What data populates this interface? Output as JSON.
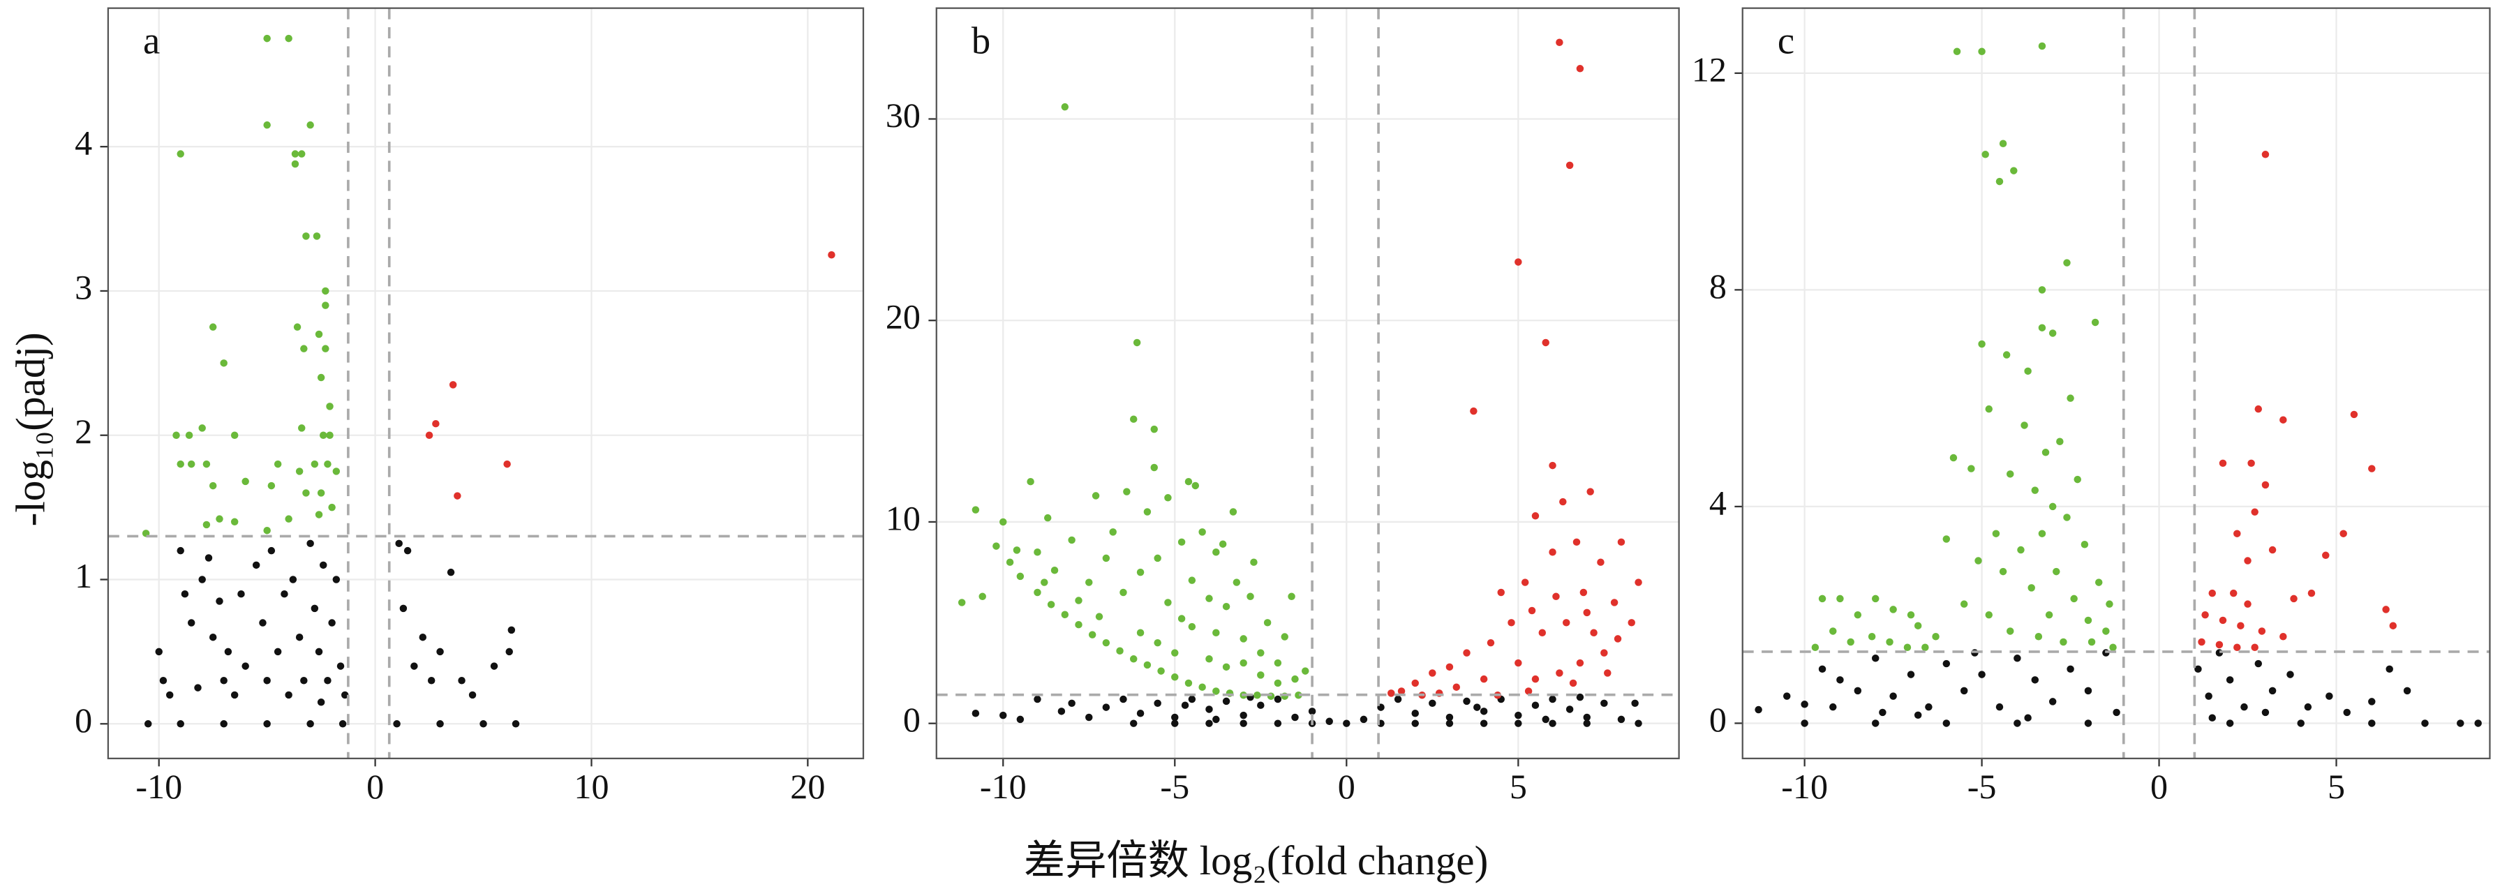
{
  "x_label": "差异倍数 log₂(fold change)",
  "y_label": "-log₁₀(padj)",
  "chart_data": [
    {
      "type": "scatter",
      "panel_label": "a",
      "xlim": [
        -12.35,
        22.57
      ],
      "ylim": [
        -0.24,
        4.96
      ],
      "xticks": [
        -10,
        0,
        10,
        20
      ],
      "yticks": [
        0,
        1,
        2,
        3,
        4
      ],
      "grid": true,
      "vlines": [
        -1.25,
        0.65
      ],
      "hline": 1.3,
      "series": [
        {
          "color": "#111111",
          "x": [
            -10.5,
            -9,
            -7,
            -5,
            -3,
            -1.5,
            1,
            3,
            5,
            6.5,
            -10,
            -9.8,
            -9.5,
            -9,
            -8.8,
            -8.5,
            -8,
            -7.5,
            -7.2,
            -7,
            -6.8,
            -6.5,
            -6.2,
            -6,
            -5.5,
            -5.2,
            -5,
            -4.8,
            -4.5,
            -4.2,
            -4,
            -3.8,
            -3.5,
            -3.3,
            -3,
            -2.8,
            -2.6,
            -2.4,
            -2.2,
            -2.0,
            -1.8,
            -1.6,
            -1.4,
            1.1,
            1.3,
            1.5,
            1.8,
            2.2,
            2.6,
            3,
            3.5,
            4,
            4.5,
            5.5,
            6.2,
            6.3,
            -8.2,
            -7.7,
            -2.5
          ],
          "y": [
            0,
            0,
            0,
            0,
            0,
            0,
            0,
            0,
            0,
            0,
            0.5,
            0.3,
            0.2,
            1.2,
            0.9,
            0.7,
            1.0,
            0.6,
            0.85,
            0.3,
            0.5,
            0.2,
            0.9,
            0.4,
            1.1,
            0.7,
            0.3,
            1.2,
            0.5,
            0.9,
            0.2,
            1.0,
            0.6,
            0.3,
            1.25,
            0.8,
            0.5,
            1.1,
            0.3,
            0.7,
            1.0,
            0.4,
            0.2,
            1.25,
            0.8,
            1.2,
            0.4,
            0.6,
            0.3,
            0.5,
            1.05,
            0.3,
            0.2,
            0.4,
            0.5,
            0.65,
            0.25,
            1.15,
            0.15
          ]
        },
        {
          "color": "#6ab93a",
          "x": [
            -9,
            -5,
            -4,
            -5,
            -3,
            -3.7,
            -3.4,
            -3.7,
            -3.2,
            -2.7,
            -2.3,
            -2.3,
            -7.5,
            -7,
            -3.6,
            -3.3,
            -2.6,
            -2.3,
            -2.5,
            -2.1,
            -8,
            -8.6,
            -9.2,
            -6.5,
            -3.4,
            -2.4,
            -2.1,
            -8.5,
            -7.8,
            -9,
            -6.0,
            -4.5,
            -3.5,
            -2.8,
            -2.2,
            -1.8,
            -7.5,
            -4.8,
            -3.2,
            -2.5,
            -7.2,
            -7.8,
            -6.5,
            -4.0,
            -2.6,
            -10.6,
            -5.0,
            -2.0
          ],
          "y": [
            3.95,
            4.75,
            4.75,
            4.15,
            4.15,
            3.95,
            3.95,
            3.88,
            3.38,
            3.38,
            3.0,
            2.9,
            2.75,
            2.5,
            2.75,
            2.6,
            2.7,
            2.6,
            2.4,
            2.2,
            2.05,
            2.0,
            2.0,
            2.0,
            2.05,
            2.0,
            2.0,
            1.8,
            1.8,
            1.8,
            1.68,
            1.8,
            1.75,
            1.8,
            1.8,
            1.75,
            1.65,
            1.65,
            1.6,
            1.6,
            1.42,
            1.38,
            1.4,
            1.42,
            1.45,
            1.32,
            1.34,
            1.5
          ]
        },
        {
          "color": "#e0312b",
          "x": [
            21.1,
            3.6,
            2.8,
            2.5,
            6.1,
            3.8
          ],
          "y": [
            3.25,
            2.35,
            2.08,
            2.0,
            1.8,
            1.58
          ]
        }
      ]
    },
    {
      "type": "scatter",
      "panel_label": "b",
      "xlim": [
        -11.94,
        9.68
      ],
      "ylim": [
        -1.74,
        35.5
      ],
      "xticks": [
        -10,
        -5,
        0,
        5
      ],
      "yticks": [
        0,
        10,
        20,
        30
      ],
      "grid": true,
      "vlines": [
        -1,
        0.93
      ],
      "hline": 1.42,
      "series": [
        {
          "color": "#111111",
          "x": [
            -10.8,
            -10,
            -9.5,
            -9,
            -8,
            -7,
            -6.5,
            -6,
            -5.5,
            -5,
            -4.5,
            -4,
            -3.5,
            -3,
            -2.5,
            -2,
            -1.5,
            -1,
            -0.5,
            0,
            0.5,
            1,
            1.5,
            2,
            2.5,
            3,
            3.5,
            4,
            4.5,
            5,
            5.5,
            6,
            6.5,
            7,
            7.5,
            8,
            8.5,
            -6.2,
            -5,
            -4,
            -3,
            -2,
            -1,
            1,
            2,
            3,
            4,
            5,
            6,
            7,
            -8.3,
            -7.5,
            -4.7,
            -3.8,
            -2.8,
            3.8,
            5.8,
            6.8,
            8.4
          ],
          "y": [
            0.5,
            0.4,
            0.2,
            1.2,
            1.0,
            0.8,
            1.2,
            0.5,
            1.0,
            0.3,
            1.2,
            0.7,
            1.1,
            0.4,
            0.9,
            1.2,
            0.3,
            0.6,
            0.1,
            0,
            0.2,
            0.8,
            1.2,
            0.5,
            1.0,
            0.3,
            1.1,
            0.6,
            1.2,
            0.4,
            0.9,
            1.2,
            0.7,
            0.3,
            1.0,
            0.2,
            0.0,
            0,
            0,
            0,
            0,
            0,
            0,
            0,
            0,
            0,
            0,
            0,
            0,
            0,
            0.6,
            0.3,
            0.9,
            0.2,
            1.3,
            0.8,
            0.2,
            1.3,
            1.0
          ]
        },
        {
          "color": "#6ab93a",
          "x": [
            -8.2,
            -6.1,
            -5.2,
            -6.2,
            -5.6,
            -4.6,
            -4.4,
            -3.8,
            -3.6,
            -5.6,
            -10.8,
            -9.2,
            -11.2,
            -10.2,
            -9.8,
            -9.5,
            -9,
            -8.6,
            -8.2,
            -7.8,
            -7.4,
            -7,
            -6.6,
            -6.2,
            -5.8,
            -5.4,
            -5,
            -4.6,
            -4.2,
            -3.8,
            -3.4,
            -3,
            -2.6,
            -2.2,
            -1.8,
            -1.4,
            -9,
            -8.5,
            -8,
            -7.5,
            -7,
            -6.8,
            -6.5,
            -6,
            -5.5,
            -5.2,
            -4.8,
            -4.5,
            -4.2,
            -4,
            -3.8,
            -3.5,
            -3.2,
            -3,
            -2.8,
            -2.5,
            -2.3,
            -2,
            -1.8,
            -1.5,
            -1.2,
            -6,
            -5.5,
            -5,
            -4.5,
            -4,
            -3.5,
            -3,
            -2.5,
            -2,
            -7.8,
            -7.2,
            -8.8,
            -9.6,
            -10,
            -10.6,
            -4.8,
            -5.8,
            -6.4,
            -7.3,
            -8.7,
            -3.3,
            -2.7,
            -1.6
          ],
          "y": [
            30.6,
            18.9,
            11.2,
            15.1,
            14.6,
            12,
            11.8,
            8.5,
            8.9,
            12.7,
            10.6,
            12,
            6.0,
            8.8,
            8.0,
            7.3,
            6.5,
            5.9,
            5.4,
            4.9,
            4.4,
            4.0,
            3.6,
            3.2,
            2.9,
            2.6,
            2.3,
            2.0,
            1.8,
            1.6,
            1.5,
            1.4,
            1.4,
            1.35,
            1.35,
            1.4,
            8.5,
            7.6,
            9.1,
            7.0,
            8.2,
            9.5,
            6.5,
            7.5,
            8.2,
            6.0,
            5.2,
            7.1,
            9.5,
            6.2,
            4.5,
            5.8,
            7.0,
            4.2,
            6.3,
            3.5,
            5.0,
            3.0,
            4.3,
            2.2,
            2.6,
            4.5,
            4.0,
            3.5,
            4.8,
            3.2,
            2.8,
            3.0,
            2.4,
            2.0,
            6.1,
            5.3,
            7.0,
            8.6,
            10,
            6.3,
            9.0,
            10.5,
            11.5,
            11.3,
            10.2,
            10.5,
            8.0,
            6.3
          ]
        },
        {
          "color": "#e0312b",
          "x": [
            6.2,
            6.8,
            6.5,
            5.0,
            5.8,
            3.7,
            6.0,
            7.1,
            6.3,
            5.5,
            8.0,
            8.5,
            6.7,
            7.4,
            6.0,
            5.2,
            4.5,
            7.8,
            7.0,
            6.4,
            5.7,
            4.8,
            4.2,
            3.5,
            3.0,
            2.5,
            2,
            1.6,
            1.3,
            7.5,
            6.8,
            6.2,
            5.5,
            5,
            4,
            3.2,
            2.7,
            7.2,
            7.6,
            6.6,
            5.3,
            4.4,
            8.3,
            7.9,
            6.9,
            6.1,
            5.4,
            2.2
          ],
          "y": [
            33.8,
            32.5,
            27.7,
            22.9,
            18.9,
            15.5,
            12.8,
            11.5,
            11.0,
            10.3,
            9.0,
            7.0,
            9.0,
            8.0,
            8.5,
            7.0,
            6.5,
            6.0,
            5.5,
            5.0,
            4.5,
            5.0,
            4.0,
            3.5,
            2.8,
            2.5,
            2.0,
            1.6,
            1.5,
            3.5,
            3.0,
            2.5,
            2.2,
            3.0,
            2.2,
            1.8,
            1.5,
            4.5,
            2.5,
            2.0,
            1.6,
            1.4,
            5.0,
            4.2,
            6.5,
            6.3,
            5.6,
            1.4
          ]
        }
      ]
    },
    {
      "type": "scatter",
      "panel_label": "c",
      "xlim": [
        -11.75,
        9.33
      ],
      "ylim": [
        -0.65,
        13.2
      ],
      "xticks": [
        -10,
        -5,
        0,
        5
      ],
      "yticks": [
        0,
        4,
        8,
        12
      ],
      "grid": true,
      "vlines": [
        -1,
        1
      ],
      "hline": 1.32,
      "series": [
        {
          "color": "#111111",
          "x": [
            -11.3,
            -10.5,
            -10,
            -9.5,
            -9,
            -8.5,
            -8,
            -7.5,
            -7,
            -6.5,
            -6,
            -5.5,
            -5,
            -4.5,
            -4,
            -3.5,
            -3,
            -2.5,
            -2,
            -1.5,
            -1.2,
            1.1,
            1.4,
            1.7,
            2,
            2.4,
            2.8,
            3.2,
            3.7,
            4.2,
            4.8,
            5.3,
            6,
            6.5,
            7,
            7.5,
            8.5,
            9,
            -10,
            -8,
            -6,
            -4,
            -2,
            2,
            4,
            6,
            -9.2,
            -7.8,
            -6.8,
            -5.2,
            -3.7,
            1.5,
            3
          ],
          "y": [
            0.25,
            0.5,
            0.35,
            1.0,
            0.8,
            0.6,
            1.2,
            0.5,
            0.9,
            0.3,
            1.1,
            0.6,
            0.9,
            0.3,
            1.2,
            0.8,
            0.4,
            1.0,
            0.6,
            1.3,
            0.2,
            1.0,
            0.5,
            1.3,
            0.8,
            0.3,
            1.1,
            0.6,
            0.9,
            0.3,
            0.5,
            0.2,
            0.4,
            1.0,
            0.6,
            0.0,
            0,
            0,
            0,
            0,
            0,
            0,
            0,
            0,
            0,
            0,
            0.3,
            0.2,
            0.15,
            1.3,
            0.1,
            0.1,
            0.2
          ]
        },
        {
          "color": "#6ab93a",
          "x": [
            -5.7,
            -5.0,
            -3.3,
            -4.4,
            -4.9,
            -4.1,
            -4.5,
            -2.6,
            -3.3,
            -3.0,
            -1.8,
            -3.3,
            -5.0,
            -4.3,
            -3.7,
            -2.5,
            -3.8,
            -4.8,
            -3.2,
            -2.8,
            -5.3,
            -4.2,
            -3.5,
            -2.3,
            -3.0,
            -2.6,
            -4.6,
            -3.9,
            -3.3,
            -2.1,
            -5.1,
            -4.4,
            -2.9,
            -1.7,
            -3.6,
            -2.4,
            -1.4,
            -5.5,
            -4.8,
            -3.1,
            -2.0,
            -1.5,
            -4.2,
            -3.4,
            -2.7,
            -1.9,
            -1.3,
            -6.0,
            -5.8,
            -6.3,
            -9.0,
            -9.5,
            -8.0,
            -8.5,
            -7.5,
            -7.0,
            -6.8,
            -9.2,
            -8.7,
            -8.1,
            -7.6,
            -7.1,
            -6.6,
            -9.7
          ],
          "y": [
            12.4,
            12.4,
            12.5,
            10.7,
            10.5,
            10.2,
            10.0,
            8.5,
            8.0,
            7.2,
            7.4,
            7.3,
            7.0,
            6.8,
            6.5,
            6.0,
            5.5,
            5.8,
            5.0,
            5.2,
            4.7,
            4.6,
            4.3,
            4.5,
            4.0,
            3.8,
            3.5,
            3.2,
            3.5,
            3.3,
            3.0,
            2.8,
            2.8,
            2.6,
            2.5,
            2.3,
            2.2,
            2.2,
            2.0,
            2.0,
            1.9,
            1.7,
            1.7,
            1.6,
            1.5,
            1.5,
            1.4,
            3.4,
            4.9,
            1.6,
            2.3,
            2.3,
            2.3,
            2.0,
            2.1,
            2.0,
            1.8,
            1.7,
            1.5,
            1.6,
            1.5,
            1.4,
            1.4,
            1.4
          ]
        },
        {
          "color": "#e0312b",
          "x": [
            3.0,
            2.8,
            3.5,
            5.5,
            6.0,
            1.8,
            2.6,
            3.0,
            2.7,
            2.2,
            5.2,
            4.7,
            3.2,
            2.5,
            1.5,
            2.1,
            2.5,
            3.8,
            4.3,
            6.4,
            1.3,
            1.8,
            2.3,
            2.9,
            3.5,
            6.6,
            1.2,
            1.7,
            2.2,
            2.7
          ],
          "y": [
            10.5,
            5.8,
            5.6,
            5.7,
            4.7,
            4.8,
            4.8,
            4.4,
            3.9,
            3.5,
            3.5,
            3.1,
            3.2,
            3.0,
            2.4,
            2.4,
            2.2,
            2.3,
            2.4,
            2.1,
            2.0,
            1.9,
            1.8,
            1.7,
            1.6,
            1.8,
            1.5,
            1.45,
            1.4,
            1.4
          ]
        }
      ]
    }
  ]
}
